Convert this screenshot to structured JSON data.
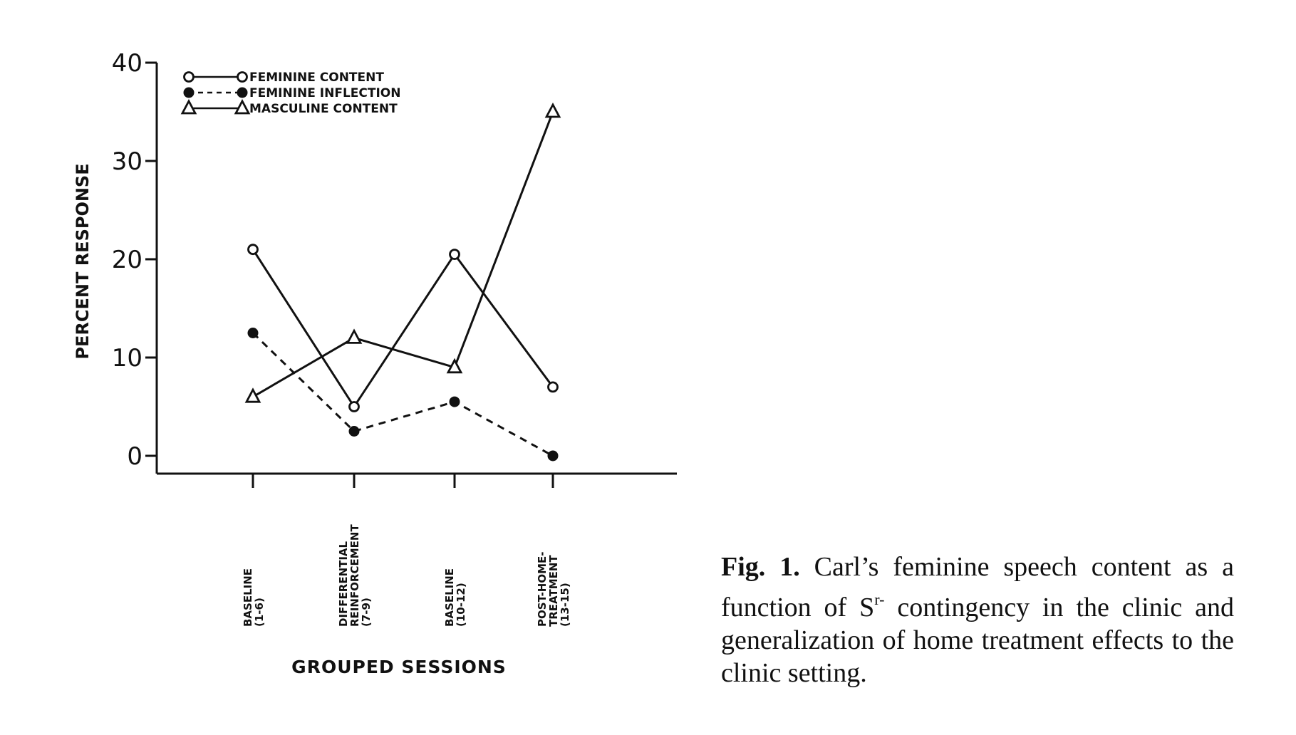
{
  "chart_data": {
    "type": "line",
    "title": "",
    "xlabel": "GROUPED SESSIONS",
    "ylabel": "PERCENT RESPONSE",
    "ylim": [
      0,
      40
    ],
    "yticks": [
      "0",
      "10",
      "20",
      "30",
      "40"
    ],
    "categories": [
      [
        "BASELINE",
        "(1-6)"
      ],
      [
        "DIFFERENTIAL",
        "REINFORCEMENT",
        "(7-9)"
      ],
      [
        "BASELINE",
        "(10-12)"
      ],
      [
        "POST-HOME-",
        "TREATMENT",
        "(13-15)"
      ]
    ],
    "legend_position": "top-left",
    "grid": false,
    "series": [
      {
        "name": "FEMININE CONTENT",
        "marker": "open-circle",
        "line": "solid",
        "values": [
          21,
          5,
          20.5,
          7
        ]
      },
      {
        "name": "FEMININE INFLECTION",
        "marker": "filled-circle",
        "line": "dashed",
        "values": [
          12.5,
          2.5,
          5.5,
          0
        ]
      },
      {
        "name": "MASCULINE CONTENT",
        "marker": "open-triangle",
        "line": "solid",
        "values": [
          6,
          12,
          9,
          35
        ]
      }
    ]
  },
  "caption": {
    "label": "Fig. 1.",
    "text_before": " Carl’s feminine speech content as a function of S",
    "superscript": "r-",
    "text_after": " contingency in the clinic and generalization of home treatment effects to the clinic setting."
  }
}
